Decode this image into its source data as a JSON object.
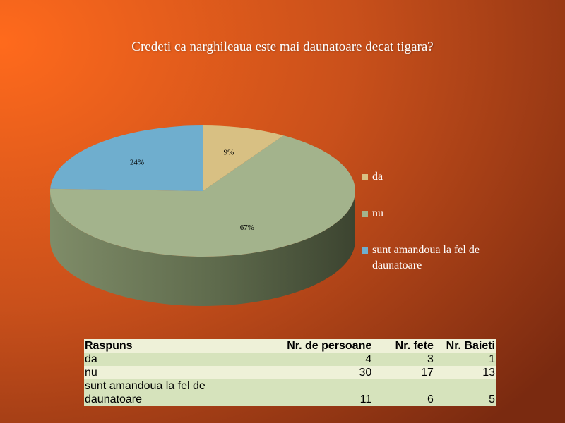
{
  "slide": {
    "background": {
      "light": "#ff6a1c",
      "mid": "#c9501b",
      "dark": "#7a2a10"
    }
  },
  "chart_data": {
    "type": "pie",
    "style": "3d",
    "title": "Credeti ca narghileaua este mai daunatoare decat tigara?",
    "categories": [
      "da",
      "nu",
      "sunt amandoua la fel de daunatoare"
    ],
    "values": [
      4,
      30,
      11
    ],
    "percent_labels": [
      "9%",
      "67%",
      "24%"
    ],
    "colors": [
      "#d8c083",
      "#a3b38c",
      "#6faece"
    ],
    "legend_position": "right"
  },
  "table": {
    "headers": [
      "Raspuns",
      "Nr. de persoane",
      "Nr. fete",
      "Nr. Baieti"
    ],
    "rows": [
      {
        "answer": "da",
        "persons": "4",
        "girls": "3",
        "boys": "1"
      },
      {
        "answer": "nu",
        "persons": "30",
        "girls": "17",
        "boys": "13"
      },
      {
        "answer_line1": "sunt amandoua la fel de",
        "answer_line2": "daunatoare",
        "persons": "11",
        "girls": "6",
        "boys": "5"
      }
    ]
  }
}
